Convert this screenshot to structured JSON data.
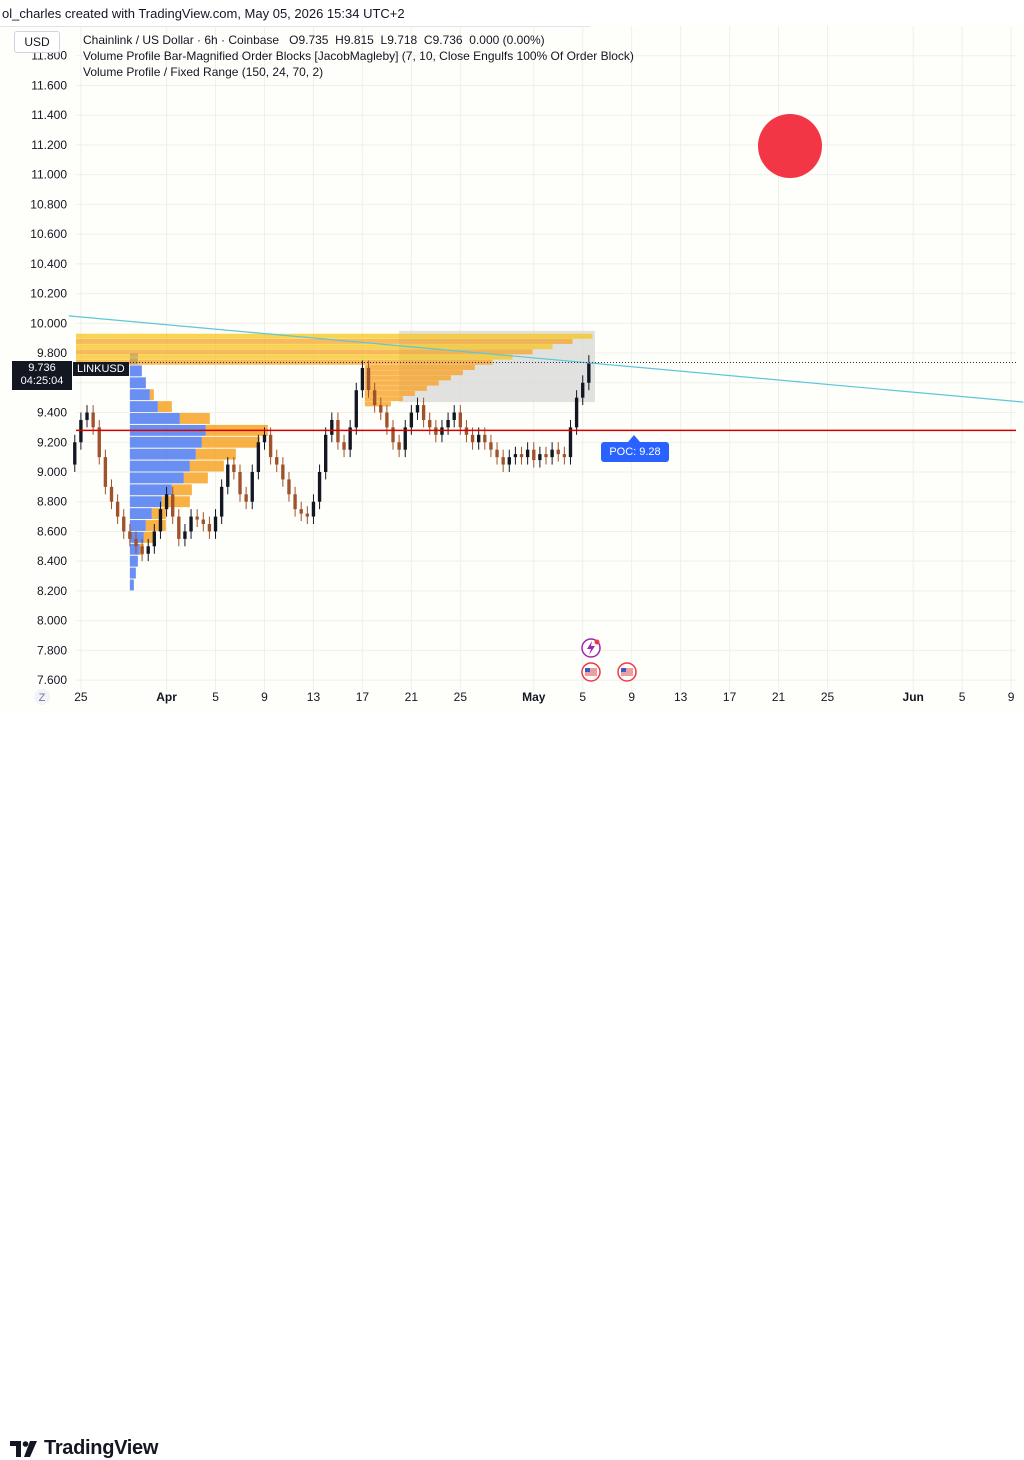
{
  "header": {
    "attribution": "ol_charles created with TradingView.com, May 05, 2026 15:34 UTC+2"
  },
  "legend": {
    "currency": "USD",
    "symbol_line": "Chainlink / US Dollar · 6h · Coinbase",
    "open": "O9.735",
    "high": "H9.815",
    "low": "L9.718",
    "close": "C9.736",
    "change": "0.000 (0.00%)",
    "indicator1": "Volume Profile Bar-Magnified Order Blocks [JacobMagleby] (7, 10, Close Engulfs 100% Of Order Block)",
    "indicator2": "Volume Profile / Fixed Range (150, 24, 70, 2)"
  },
  "price_tag": {
    "price": "9.736",
    "countdown": "04:25:04",
    "ticker": "LINKUSD"
  },
  "poc": {
    "label": "POC: 9.28",
    "value": 9.28
  },
  "colors": {
    "up_candle": "#131722",
    "down_candle": "#a0522d",
    "poc_line": "#d60000",
    "trendline": "#5cc7d8",
    "vp_up": "#f7a325",
    "vp_down": "#4f7bf0",
    "order_block": "#f5c518",
    "range_box": "#d9d9d9",
    "red_dot": "#f23645"
  },
  "footer": {
    "logo_text": "TradingView",
    "z_button": "Z"
  },
  "chart_data": {
    "type": "candlestick",
    "title": "Chainlink / US Dollar · 6h · Coinbase",
    "y_ticks": [
      "11.800",
      "11.600",
      "11.400",
      "11.200",
      "11.000",
      "10.800",
      "10.600",
      "10.400",
      "10.200",
      "10.000",
      "9.800",
      "9.600",
      "9.400",
      "9.200",
      "9.000",
      "8.800",
      "8.600",
      "8.400",
      "8.200",
      "8.000",
      "7.800",
      "7.600"
    ],
    "ylim": [
      7.52,
      12.0
    ],
    "x_ticks": [
      {
        "label": "25",
        "day": -6
      },
      {
        "label": "Apr",
        "day": 1,
        "bold": true
      },
      {
        "label": "5",
        "day": 5
      },
      {
        "label": "9",
        "day": 9
      },
      {
        "label": "13",
        "day": 13
      },
      {
        "label": "17",
        "day": 17
      },
      {
        "label": "21",
        "day": 21
      },
      {
        "label": "25",
        "day": 25
      },
      {
        "label": "May",
        "day": 31,
        "bold": true
      },
      {
        "label": "5",
        "day": 35
      },
      {
        "label": "9",
        "day": 39
      },
      {
        "label": "13",
        "day": 43
      },
      {
        "label": "17",
        "day": 47
      },
      {
        "label": "21",
        "day": 51
      },
      {
        "label": "25",
        "day": 55
      },
      {
        "label": "Jun",
        "day": 62,
        "bold": true
      },
      {
        "label": "5",
        "day": 66
      },
      {
        "label": "9",
        "day": 70
      }
    ],
    "xlim_days": [
      -6.4,
      70.4
    ],
    "close_series": [
      {
        "day": -7.0,
        "close": 9.05
      },
      {
        "day": -6.5,
        "close": 9.2
      },
      {
        "day": -6.0,
        "close": 9.35
      },
      {
        "day": -5.5,
        "close": 9.4
      },
      {
        "day": -5.0,
        "close": 9.3
      },
      {
        "day": -4.5,
        "close": 9.1
      },
      {
        "day": -4.0,
        "close": 8.9
      },
      {
        "day": -3.5,
        "close": 8.8
      },
      {
        "day": -3.0,
        "close": 8.7
      },
      {
        "day": -2.5,
        "close": 8.6
      },
      {
        "day": -2.0,
        "close": 8.55
      },
      {
        "day": -1.5,
        "close": 8.5
      },
      {
        "day": -1.0,
        "close": 8.45
      },
      {
        "day": -0.5,
        "close": 8.5
      },
      {
        "day": 0.0,
        "close": 8.6
      },
      {
        "day": 0.5,
        "close": 8.75
      },
      {
        "day": 1.0,
        "close": 8.85
      },
      {
        "day": 1.5,
        "close": 8.7
      },
      {
        "day": 2.0,
        "close": 8.55
      },
      {
        "day": 2.5,
        "close": 8.6
      },
      {
        "day": 3.0,
        "close": 8.7
      },
      {
        "day": 3.5,
        "close": 8.68
      },
      {
        "day": 4.0,
        "close": 8.65
      },
      {
        "day": 4.5,
        "close": 8.6
      },
      {
        "day": 5.0,
        "close": 8.7
      },
      {
        "day": 5.5,
        "close": 8.9
      },
      {
        "day": 6.0,
        "close": 9.05
      },
      {
        "day": 6.5,
        "close": 9.0
      },
      {
        "day": 7.0,
        "close": 8.85
      },
      {
        "day": 7.5,
        "close": 8.8
      },
      {
        "day": 8.0,
        "close": 9.0
      },
      {
        "day": 8.5,
        "close": 9.2
      },
      {
        "day": 9.0,
        "close": 9.25
      },
      {
        "day": 9.5,
        "close": 9.1
      },
      {
        "day": 10.0,
        "close": 9.05
      },
      {
        "day": 10.5,
        "close": 8.95
      },
      {
        "day": 11.0,
        "close": 8.85
      },
      {
        "day": 11.5,
        "close": 8.75
      },
      {
        "day": 12.0,
        "close": 8.72
      },
      {
        "day": 12.5,
        "close": 8.7
      },
      {
        "day": 13.0,
        "close": 8.8
      },
      {
        "day": 13.5,
        "close": 9.0
      },
      {
        "day": 14.0,
        "close": 9.25
      },
      {
        "day": 14.5,
        "close": 9.35
      },
      {
        "day": 15.0,
        "close": 9.2
      },
      {
        "day": 15.5,
        "close": 9.15
      },
      {
        "day": 16.0,
        "close": 9.3
      },
      {
        "day": 16.5,
        "close": 9.55
      },
      {
        "day": 17.0,
        "close": 9.7
      },
      {
        "day": 17.5,
        "close": 9.55
      },
      {
        "day": 18.0,
        "close": 9.45
      },
      {
        "day": 18.5,
        "close": 9.4
      },
      {
        "day": 19.0,
        "close": 9.3
      },
      {
        "day": 19.5,
        "close": 9.2
      },
      {
        "day": 20.0,
        "close": 9.15
      },
      {
        "day": 20.5,
        "close": 9.3
      },
      {
        "day": 21.0,
        "close": 9.4
      },
      {
        "day": 21.5,
        "close": 9.45
      },
      {
        "day": 22.0,
        "close": 9.35
      },
      {
        "day": 22.5,
        "close": 9.3
      },
      {
        "day": 23.0,
        "close": 9.25
      },
      {
        "day": 23.5,
        "close": 9.3
      },
      {
        "day": 24.0,
        "close": 9.35
      },
      {
        "day": 24.5,
        "close": 9.4
      },
      {
        "day": 25.0,
        "close": 9.3
      },
      {
        "day": 25.5,
        "close": 9.25
      },
      {
        "day": 26.0,
        "close": 9.2
      },
      {
        "day": 26.5,
        "close": 9.25
      },
      {
        "day": 27.0,
        "close": 9.2
      },
      {
        "day": 27.5,
        "close": 9.15
      },
      {
        "day": 28.0,
        "close": 9.1
      },
      {
        "day": 28.5,
        "close": 9.05
      },
      {
        "day": 29.0,
        "close": 9.1
      },
      {
        "day": 29.5,
        "close": 9.12
      },
      {
        "day": 30.0,
        "close": 9.1
      },
      {
        "day": 30.5,
        "close": 9.15
      },
      {
        "day": 31.0,
        "close": 9.08
      },
      {
        "day": 31.5,
        "close": 9.12
      },
      {
        "day": 32.0,
        "close": 9.1
      },
      {
        "day": 32.5,
        "close": 9.15
      },
      {
        "day": 33.0,
        "close": 9.12
      },
      {
        "day": 33.5,
        "close": 9.1
      },
      {
        "day": 34.0,
        "close": 9.3
      },
      {
        "day": 34.5,
        "close": 9.5
      },
      {
        "day": 35.0,
        "close": 9.6
      },
      {
        "day": 35.5,
        "close": 9.736
      }
    ],
    "poc": 9.28,
    "trendline": {
      "start_day": -7,
      "start_price": 10.05,
      "end_day": 71,
      "end_price": 9.47
    },
    "range_box": {
      "start_day": 20.0,
      "end_day": 36.0,
      "low": 9.47,
      "high": 9.95
    }
  }
}
